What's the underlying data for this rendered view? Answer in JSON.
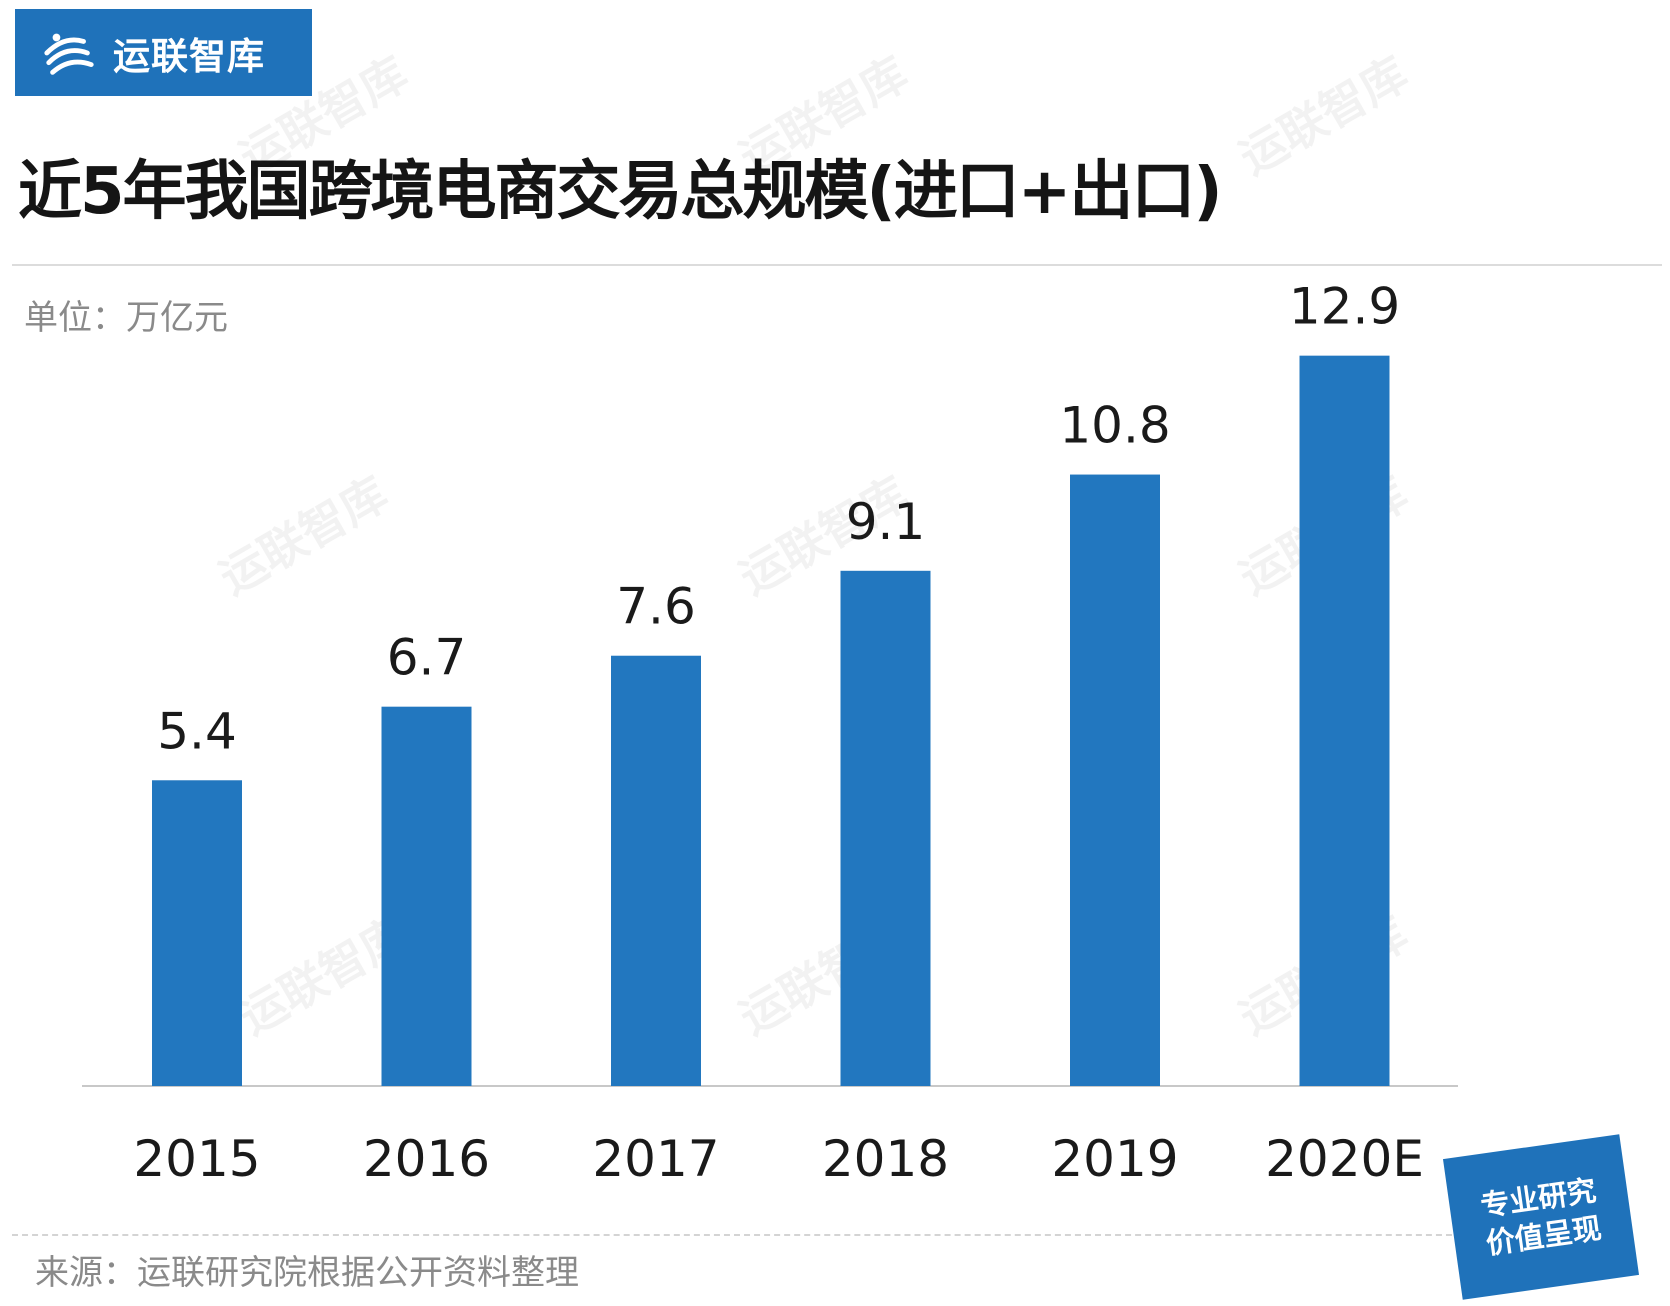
{
  "brand": {
    "logo_text": "运联智库",
    "watermark_text": "运联智库",
    "accent_color": "#1f72ba"
  },
  "title": "近5年我国跨境电商交易总规模(进口+出口)",
  "unit_label": "单位：万亿元",
  "source_label": "来源：运联研究院根据公开资料整理",
  "badge": {
    "line1": "专业研究",
    "line2": "价值呈现"
  },
  "chart_data": {
    "type": "bar",
    "categories": [
      "2015",
      "2016",
      "2017",
      "2018",
      "2019",
      "2020E"
    ],
    "values": [
      5.4,
      6.7,
      7.6,
      9.1,
      10.8,
      12.9
    ],
    "data_labels": [
      "5.4",
      "6.7",
      "7.6",
      "9.1",
      "10.8",
      "12.9"
    ],
    "title": "近5年我国跨境电商交易总规模(进口+出口)",
    "unit": "万亿元",
    "ylim": [
      0,
      13
    ],
    "grid": false,
    "legend": "none",
    "bar_color": "#2277bf",
    "axis_color": "#c8c8c8"
  }
}
